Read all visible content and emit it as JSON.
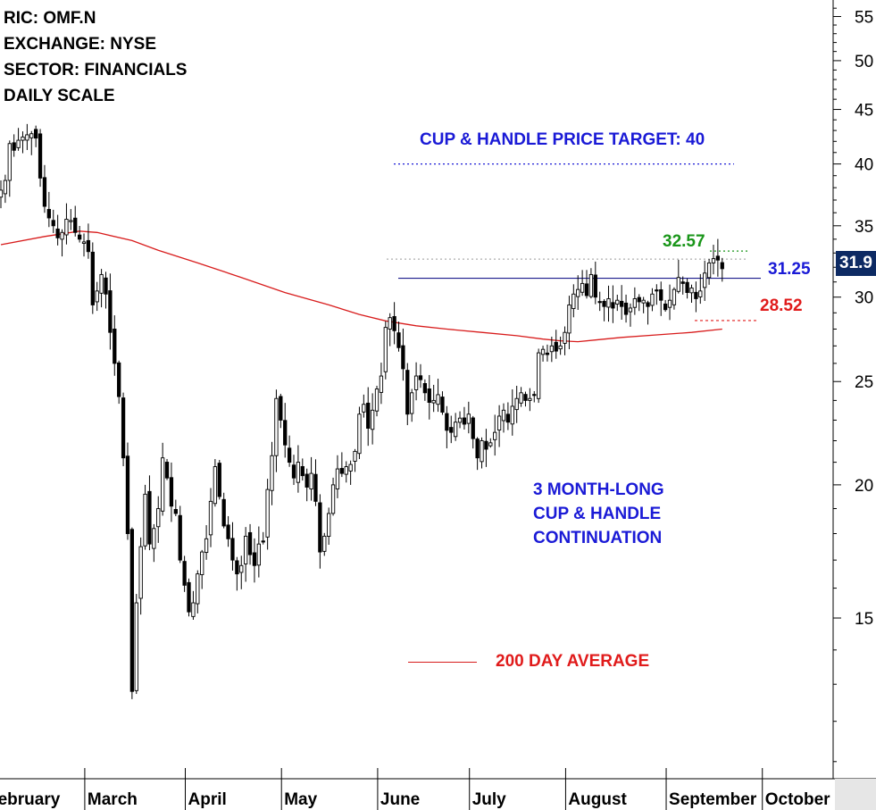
{
  "info": {
    "ric": "RIC: OMF.N",
    "exchange": "EXCHANGE: NYSE",
    "sector": "SECTOR: FINANCIALS",
    "scale": "DAILY SCALE"
  },
  "annotations": {
    "target_label": "CUP & HANDLE PRICE TARGET: 40",
    "resistance_label": "31.25",
    "high_label": "32.57",
    "support_label": "28.52",
    "pattern_line1": "3 MONTH-LONG",
    "pattern_line2": "CUP & HANDLE",
    "pattern_line3": "CONTINUATION",
    "legend_label": "200 DAY AVERAGE",
    "last_price": "31.9"
  },
  "colors": {
    "blue": "#1a1ad6",
    "red": "#e01b1b",
    "green": "#1a961a",
    "ma": "#d81c1c",
    "price_tag": "#0d2a63"
  },
  "chart_data": {
    "type": "candlestick",
    "y_scale": "log",
    "ylim": [
      10.6,
      57
    ],
    "y_ticks": [
      15,
      20,
      25,
      30,
      35,
      40,
      45,
      50,
      55
    ],
    "month_labels": [
      "February",
      "March",
      "April",
      "May",
      "June",
      "July",
      "August",
      "September",
      "October"
    ],
    "month_starts": [
      0,
      20,
      43,
      65,
      87,
      108,
      130,
      153,
      175
    ],
    "total_days": 182,
    "target_level": 40,
    "resistance_level": 31.25,
    "high_level": 32.57,
    "support_level": 28.52,
    "closes": [
      37.8,
      38.6,
      41.8,
      41.2,
      42.1,
      42.4,
      42.6,
      42.7,
      42.3,
      38.8,
      36.5,
      35.6,
      35.0,
      34.1,
      34.5,
      35.5,
      35.4,
      34.5,
      34.0,
      33.8,
      33.1,
      29.5,
      30.4,
      31.5,
      30.2,
      27.8,
      26.0,
      24.2,
      21.2,
      18.0,
      12.8,
      15.5,
      17.5,
      19.6,
      17.6,
      18.2,
      19.0,
      21.2,
      20.3,
      19.1,
      18.8,
      17.0,
      16.1,
      15.2,
      15.5,
      16.5,
      17.3,
      17.8,
      19.3,
      20.8,
      19.5,
      18.3,
      17.8,
      17.0,
      16.5,
      16.8,
      17.9,
      17.2,
      16.8,
      17.6,
      17.7,
      19.8,
      21.3,
      24.1,
      23.0,
      21.8,
      21.0,
      20.3,
      21.0,
      20.4,
      19.9,
      20.5,
      19.3,
      17.3,
      17.9,
      18.8,
      20.0,
      20.7,
      20.5,
      20.8,
      20.9,
      21.5,
      23.3,
      23.8,
      22.6,
      23.5,
      24.6,
      25.3,
      28.1,
      28.7,
      27.9,
      26.9,
      25.7,
      23.3,
      24.4,
      25.3,
      25.1,
      24.4,
      23.9,
      24.0,
      24.3,
      23.4,
      22.5,
      22.4,
      22.9,
      23.1,
      22.8,
      23.3,
      22.1,
      21.2,
      22.0,
      21.6,
      21.9,
      22.4,
      23.2,
      23.5,
      22.9,
      23.7,
      24.1,
      24.4,
      24.0,
      24.1,
      24.3,
      26.6,
      26.8,
      26.5,
      27.0,
      26.7,
      27.0,
      27.8,
      29.5,
      30.2,
      30.5,
      30.9,
      30.1,
      31.5,
      30.0,
      29.7,
      29.4,
      29.9,
      29.3,
      29.8,
      29.4,
      28.9,
      29.3,
      29.9,
      29.7,
      29.8,
      29.4,
      30.2,
      30.4,
      29.8,
      29.2,
      29.8,
      30.5,
      31.3,
      30.9,
      30.3,
      30.6,
      29.9,
      30.4,
      31.6,
      32.3,
      32.6,
      32.5,
      31.9
    ],
    "ma_points": [
      [
        0,
        33.6
      ],
      [
        10,
        34.2
      ],
      [
        18,
        34.6
      ],
      [
        22,
        34.5
      ],
      [
        30,
        33.9
      ],
      [
        36,
        33.2
      ],
      [
        45,
        32.3
      ],
      [
        55,
        31.3
      ],
      [
        65,
        30.3
      ],
      [
        75,
        29.5
      ],
      [
        82,
        28.9
      ],
      [
        88,
        28.5
      ],
      [
        95,
        28.2
      ],
      [
        102,
        28.0
      ],
      [
        110,
        27.8
      ],
      [
        118,
        27.6
      ],
      [
        124,
        27.4
      ],
      [
        128,
        27.3
      ],
      [
        132,
        27.25
      ],
      [
        136,
        27.35
      ],
      [
        142,
        27.5
      ],
      [
        150,
        27.65
      ],
      [
        158,
        27.8
      ],
      [
        165,
        28.0
      ]
    ]
  }
}
